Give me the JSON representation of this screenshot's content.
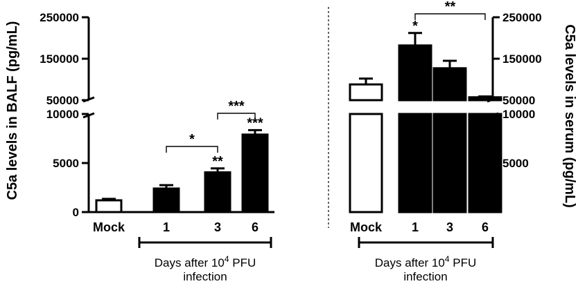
{
  "chart_data": [
    {
      "panel": "BALF",
      "type": "bar",
      "ylabel": "C5a levels in BALF (pg/mL)",
      "broken_axis": true,
      "y_lower_ticks": [
        "0",
        "5000",
        "10000"
      ],
      "y_upper_ticks": [
        "50000",
        "150000",
        "250000"
      ],
      "categories": [
        "Mock",
        "1",
        "3",
        "6"
      ],
      "values": [
        1200,
        2400,
        4050,
        7900
      ],
      "errors": [
        150,
        350,
        400,
        450
      ],
      "fill": [
        "white",
        "black",
        "black",
        "black"
      ],
      "point_stars": [
        "",
        "",
        "**",
        "***"
      ],
      "comparisons": [
        {
          "from": "1",
          "to": "3",
          "label": "*"
        },
        {
          "from": "3",
          "to": "6",
          "label": "***"
        }
      ],
      "group_label": [
        "Days after 10",
        "4",
        " PFU",
        "infection"
      ]
    },
    {
      "panel": "serum",
      "type": "bar",
      "ylabel": "C5a levels in serum (pg/mL)",
      "broken_axis": true,
      "y_lower_ticks": [
        "5000",
        "10000"
      ],
      "y_upper_ticks": [
        "50000",
        "150000",
        "250000"
      ],
      "categories": [
        "Mock",
        "1",
        "3",
        "6"
      ],
      "values": [
        88000,
        182000,
        127000,
        57000
      ],
      "errors": [
        14000,
        30000,
        18000,
        2000
      ],
      "fill": [
        "white",
        "black",
        "black",
        "black"
      ],
      "point_stars": [
        "",
        "*",
        "",
        ""
      ],
      "comparisons": [
        {
          "from": "1",
          "to": "6",
          "label": "**"
        }
      ],
      "group_label": [
        "Days after 10",
        "4",
        " PFU",
        "infection"
      ]
    }
  ]
}
